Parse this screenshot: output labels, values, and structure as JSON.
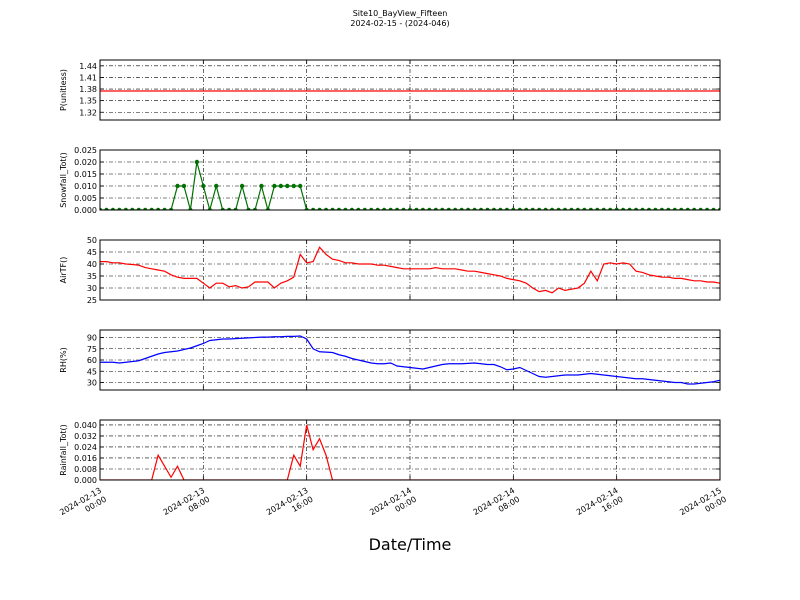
{
  "chart_data": {
    "title": "Site10_BayView_Fifteen",
    "subtitle": "2024-02-15 - (2024-046)",
    "xlabel": "Date/Time",
    "xlim": [
      "2024-02-13 00:00",
      "2024-02-15 00:00"
    ],
    "xticks": [
      "2024-02-13 00:00",
      "2024-02-13 08:00",
      "2024-02-13 16:00",
      "2024-02-14 00:00",
      "2024-02-14 08:00",
      "2024-02-14 16:00",
      "2024-02-15 00:00"
    ],
    "x": [
      "2024-02-13 00:00",
      "2024-02-13 00:30",
      "2024-02-13 01:00",
      "2024-02-13 01:30",
      "2024-02-13 02:00",
      "2024-02-13 02:30",
      "2024-02-13 03:00",
      "2024-02-13 03:30",
      "2024-02-13 04:00",
      "2024-02-13 04:30",
      "2024-02-13 05:00",
      "2024-02-13 05:30",
      "2024-02-13 06:00",
      "2024-02-13 06:30",
      "2024-02-13 07:00",
      "2024-02-13 07:30",
      "2024-02-13 08:00",
      "2024-02-13 08:30",
      "2024-02-13 09:00",
      "2024-02-13 09:30",
      "2024-02-13 10:00",
      "2024-02-13 10:30",
      "2024-02-13 11:00",
      "2024-02-13 11:30",
      "2024-02-13 12:00",
      "2024-02-13 12:30",
      "2024-02-13 13:00",
      "2024-02-13 13:30",
      "2024-02-13 14:00",
      "2024-02-13 14:30",
      "2024-02-13 15:00",
      "2024-02-13 15:30",
      "2024-02-13 16:00",
      "2024-02-13 16:30",
      "2024-02-13 17:00",
      "2024-02-13 17:30",
      "2024-02-13 18:00",
      "2024-02-13 18:30",
      "2024-02-13 19:00",
      "2024-02-13 19:30",
      "2024-02-13 20:00",
      "2024-02-13 20:30",
      "2024-02-13 21:00",
      "2024-02-13 21:30",
      "2024-02-13 22:00",
      "2024-02-13 22:30",
      "2024-02-13 23:00",
      "2024-02-13 23:30",
      "2024-02-14 00:00",
      "2024-02-14 00:30",
      "2024-02-14 01:00",
      "2024-02-14 01:30",
      "2024-02-14 02:00",
      "2024-02-14 02:30",
      "2024-02-14 03:00",
      "2024-02-14 03:30",
      "2024-02-14 04:00",
      "2024-02-14 04:30",
      "2024-02-14 05:00",
      "2024-02-14 05:30",
      "2024-02-14 06:00",
      "2024-02-14 06:30",
      "2024-02-14 07:00",
      "2024-02-14 07:30",
      "2024-02-14 08:00",
      "2024-02-14 08:30",
      "2024-02-14 09:00",
      "2024-02-14 09:30",
      "2024-02-14 10:00",
      "2024-02-14 10:30",
      "2024-02-14 11:00",
      "2024-02-14 11:30",
      "2024-02-14 12:00",
      "2024-02-14 12:30",
      "2024-02-14 13:00",
      "2024-02-14 13:30",
      "2024-02-14 14:00",
      "2024-02-14 14:30",
      "2024-02-14 15:00",
      "2024-02-14 15:30",
      "2024-02-14 16:00",
      "2024-02-14 16:30",
      "2024-02-14 17:00",
      "2024-02-14 17:30",
      "2024-02-14 18:00",
      "2024-02-14 18:30",
      "2024-02-14 19:00",
      "2024-02-14 19:30",
      "2024-02-14 20:00",
      "2024-02-14 20:30",
      "2024-02-14 21:00",
      "2024-02-14 21:30",
      "2024-02-14 22:00",
      "2024-02-14 22:30",
      "2024-02-14 23:00",
      "2024-02-14 23:30",
      "2024-02-15 00:00"
    ],
    "grid": true,
    "panels": [
      {
        "type": "line",
        "ylabel": "P(unitless)",
        "ylim": [
          1.3,
          1.455
        ],
        "yticks": [
          1.32,
          1.35,
          1.38,
          1.41,
          1.44
        ],
        "series": [
          {
            "color": "#ff0000",
            "values": [
              1.375,
              1.375,
              1.375,
              1.375,
              1.375,
              1.375,
              1.375,
              1.375,
              1.375,
              1.375,
              1.375,
              1.375,
              1.375,
              1.375,
              1.375,
              1.375,
              1.375,
              1.375,
              1.375,
              1.375,
              1.375,
              1.375,
              1.375,
              1.375,
              1.375,
              1.375,
              1.375,
              1.375,
              1.375,
              1.375,
              1.375,
              1.375,
              1.375,
              1.375,
              1.375,
              1.375,
              1.375,
              1.375,
              1.375,
              1.375,
              1.375,
              1.375,
              1.375,
              1.375,
              1.375,
              1.375,
              1.375,
              1.375,
              1.375,
              1.375,
              1.375,
              1.375,
              1.375,
              1.375,
              1.375,
              1.375,
              1.375,
              1.375,
              1.375,
              1.375,
              1.375,
              1.375,
              1.375,
              1.375,
              1.375,
              1.375,
              1.375,
              1.375,
              1.375,
              1.375,
              1.375,
              1.375,
              1.375,
              1.375,
              1.375,
              1.375,
              1.375,
              1.375,
              1.375,
              1.375,
              1.375,
              1.375,
              1.375,
              1.375,
              1.375,
              1.375,
              1.375,
              1.375,
              1.375,
              1.375,
              1.375,
              1.375,
              1.375,
              1.375,
              1.375,
              1.375,
              1.375
            ]
          }
        ]
      },
      {
        "type": "line",
        "ylabel": "Snowfall_Tot()",
        "ylim": [
          0,
          0.025
        ],
        "marker": "o",
        "yticks": [
          {
            "value": 0,
            "label": "0.000"
          },
          {
            "value": 0.005,
            "label": "0.005"
          },
          {
            "value": 0.01,
            "label": "0.010"
          },
          {
            "value": 0.015,
            "label": "0.015"
          },
          {
            "value": 0.02,
            "label": "0.020"
          },
          {
            "value": 0.025,
            "label": "0.025"
          }
        ],
        "series": [
          {
            "color": "#007000",
            "values": [
              0,
              0,
              0,
              0,
              0,
              0,
              0,
              0,
              0,
              0,
              0,
              0,
              0.01,
              0.01,
              0,
              0.02,
              0.01,
              0,
              0.01,
              0,
              0,
              0,
              0.01,
              0,
              0,
              0.01,
              0,
              0.01,
              0.01,
              0.01,
              0.01,
              0.01,
              0,
              0,
              0,
              0,
              0,
              0,
              0,
              0,
              0,
              0,
              0,
              0,
              0,
              0,
              0,
              0,
              0,
              0,
              0,
              0,
              0,
              0,
              0,
              0,
              0,
              0,
              0,
              0,
              0,
              0,
              0,
              0,
              0,
              0,
              0,
              0,
              0,
              0,
              0,
              0,
              0,
              0,
              0,
              0,
              0,
              0,
              0,
              0,
              0,
              0,
              0,
              0,
              0,
              0,
              0,
              0,
              0,
              0,
              0,
              0,
              0,
              0,
              0,
              0,
              0
            ]
          }
        ]
      },
      {
        "type": "line",
        "ylabel": "AirTF()",
        "ylim": [
          25,
          50
        ],
        "yticks": [
          25,
          30,
          35,
          40,
          45,
          50
        ],
        "series": [
          {
            "color": "#ff0000",
            "values": [
              41,
              41,
              40.5,
              40.5,
              40,
              39.8,
              39.5,
              38.5,
              38,
              37.5,
              37,
              35.5,
              34.5,
              34,
              34,
              34,
              32,
              30,
              32,
              32,
              30.5,
              31,
              30,
              30.5,
              32.5,
              32.5,
              32.5,
              30,
              32,
              33,
              34.5,
              44,
              40.5,
              41,
              47,
              44,
              42,
              41.5,
              40.5,
              40.5,
              40,
              40,
              40,
              39.5,
              39.5,
              39,
              38.5,
              38,
              38,
              38,
              38,
              38,
              38.5,
              38,
              38,
              38,
              37.5,
              37,
              37,
              36.5,
              36,
              35.5,
              35,
              34,
              33.5,
              33,
              32,
              30,
              28.5,
              29,
              28,
              30,
              29,
              29.5,
              30,
              32,
              37,
              33,
              40,
              40.5,
              40,
              40.5,
              40,
              37,
              36.5,
              35.5,
              35,
              34.5,
              34.5,
              34,
              34,
              33.5,
              33,
              33,
              32.5,
              32.5,
              32
            ]
          }
        ]
      },
      {
        "type": "line",
        "ylabel": "RH(%)",
        "ylim": [
          20,
          100
        ],
        "yticks": [
          30,
          45,
          60,
          75,
          90
        ],
        "series": [
          {
            "color": "#0000ff",
            "values": [
              57,
              57,
              57,
              56,
              57,
              58,
              59,
              62,
              65,
              68,
              70,
              71,
              72,
              74,
              76,
              79,
              82,
              86,
              87,
              88,
              88,
              88.5,
              89,
              89.5,
              90,
              90.5,
              90.5,
              91,
              91,
              91.5,
              91.5,
              92,
              88,
              75,
              71,
              70.5,
              70,
              67,
              65,
              62,
              60,
              58,
              56,
              55,
              55,
              56,
              52,
              51,
              50,
              49,
              48,
              50,
              52,
              54,
              55,
              55,
              55,
              55.5,
              56,
              55,
              54,
              54,
              51,
              47,
              48,
              50,
              46,
              42,
              38,
              37,
              38,
              39,
              40,
              40,
              40,
              41,
              42,
              41,
              40,
              39,
              38,
              37,
              36,
              35,
              35,
              34,
              33,
              32,
              31,
              30,
              30,
              28,
              28,
              29,
              30,
              31,
              33
            ]
          }
        ]
      },
      {
        "type": "line",
        "ylabel": "Rainfall_Tot()",
        "ylim": [
          0,
          0.0436
        ],
        "yticks": [
          {
            "value": 0,
            "label": "0.000"
          },
          {
            "value": 0.008,
            "label": "0.008"
          },
          {
            "value": 0.016,
            "label": "0.016"
          },
          {
            "value": 0.024,
            "label": "0.024"
          },
          {
            "value": 0.032,
            "label": "0.032"
          },
          {
            "value": 0.04,
            "label": "0.040"
          }
        ],
        "series": [
          {
            "color": "#ff0000",
            "values": [
              0,
              0,
              0,
              0,
              0,
              0,
              0,
              0,
              0,
              0.018,
              0.01,
              0.002,
              0.01,
              0,
              0,
              0,
              0,
              0,
              0,
              0,
              0,
              0,
              0,
              0,
              0,
              0,
              0,
              0,
              0,
              0,
              0.018,
              0.01,
              0.04,
              0.022,
              0.03,
              0.018,
              0,
              0,
              0,
              0,
              0,
              0,
              0,
              0,
              0,
              0,
              0,
              0,
              0,
              0,
              0,
              0,
              0,
              0,
              0,
              0,
              0,
              0,
              0,
              0,
              0,
              0,
              0,
              0,
              0,
              0,
              0,
              0,
              0,
              0,
              0,
              0,
              0,
              0,
              0,
              0,
              0,
              0,
              0,
              0,
              0,
              0,
              0,
              0,
              0,
              0,
              0,
              0,
              0,
              0,
              0,
              0,
              0,
              0,
              0,
              0,
              0
            ]
          }
        ]
      }
    ]
  }
}
